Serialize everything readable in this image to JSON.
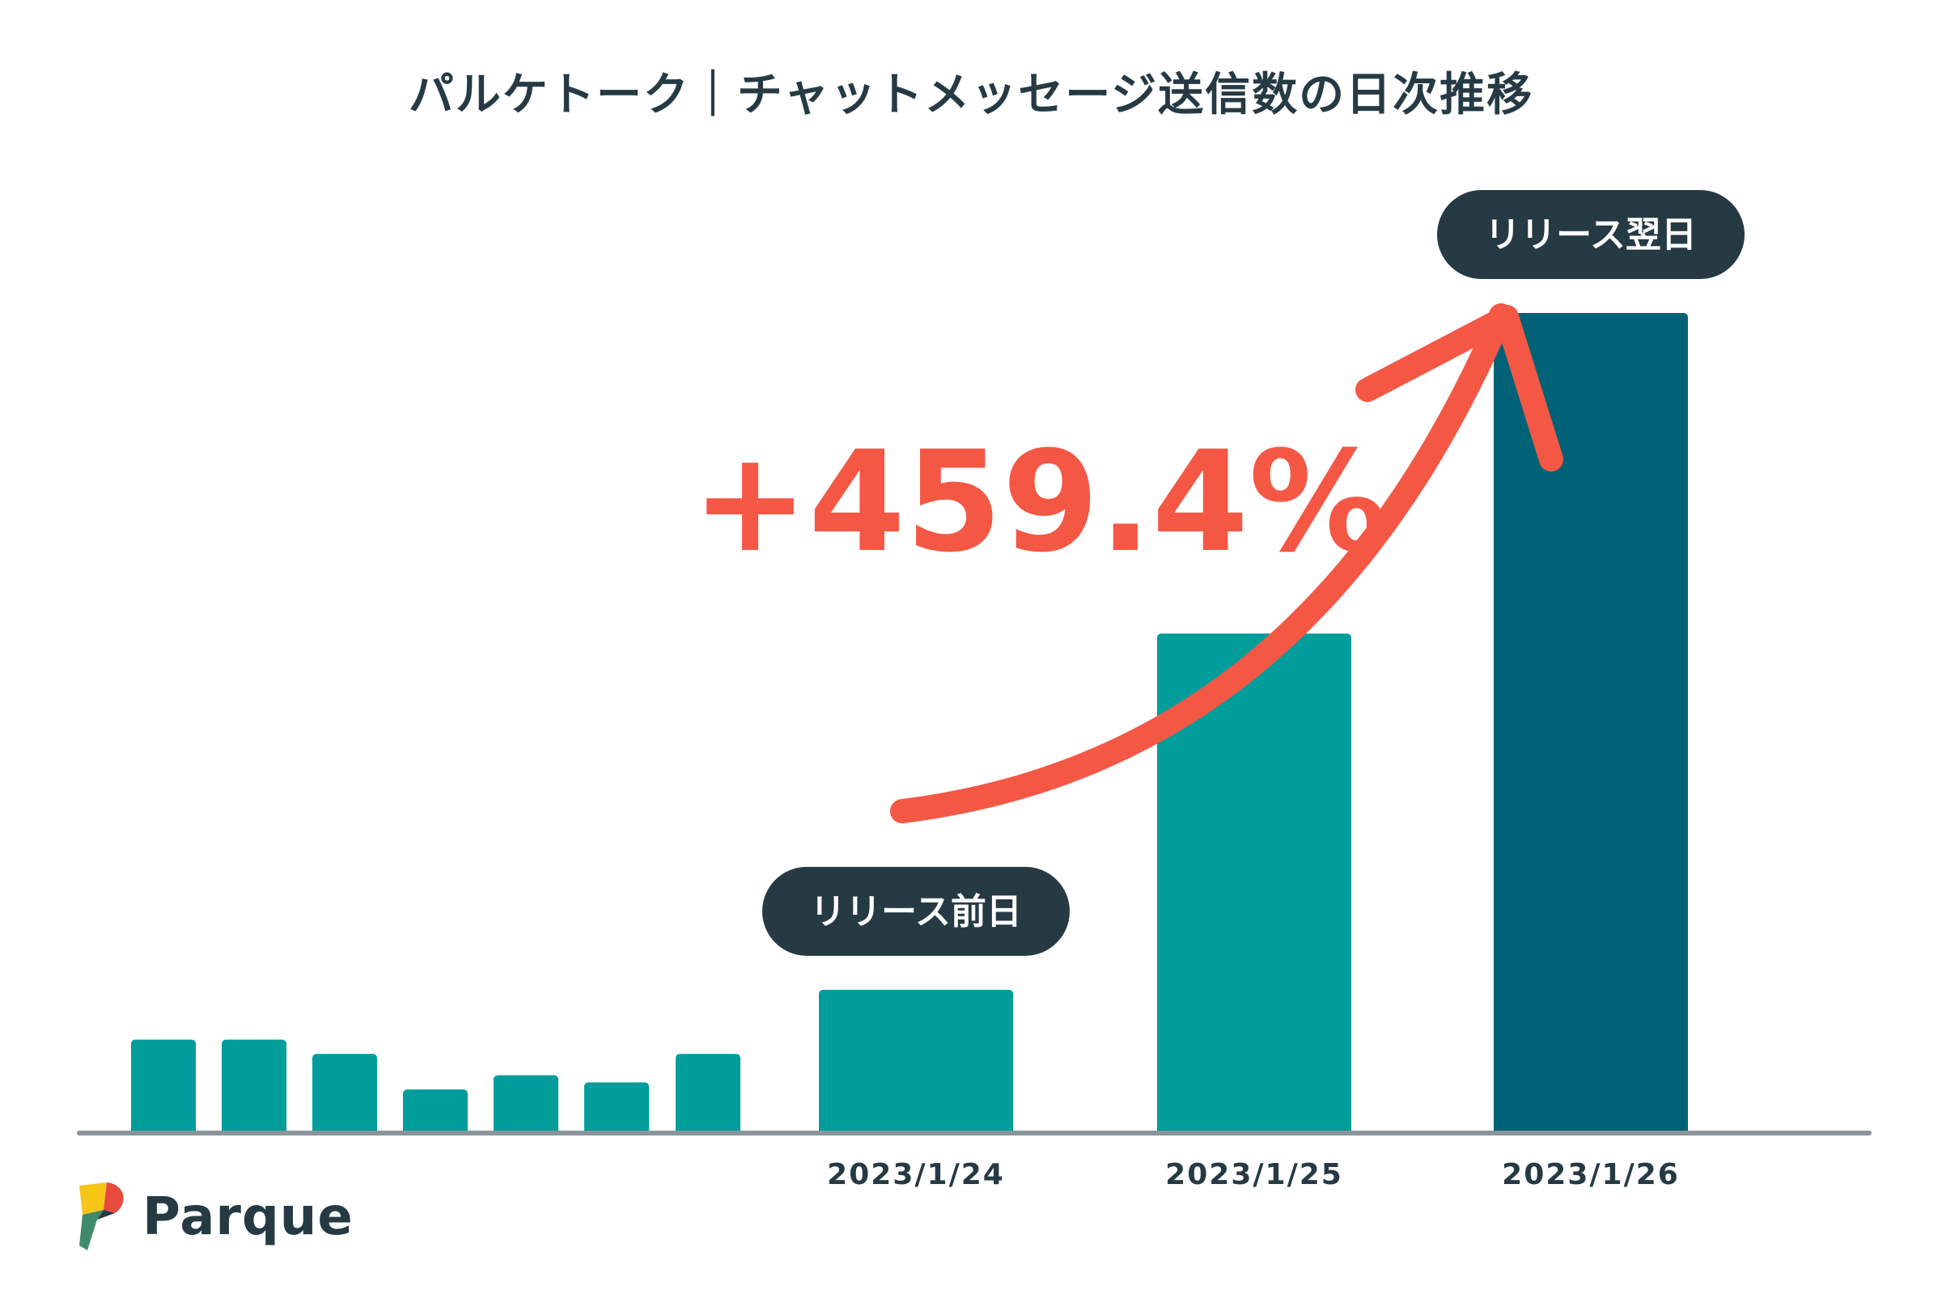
{
  "title": "パルケトーク｜チャットメッセージ送信数の日次推移",
  "brand": {
    "name": "Parque"
  },
  "colors": {
    "bar": "#019d9b",
    "highlight_bar": "#006276",
    "axis": "#8a949b",
    "arrow": "#f55745",
    "pill": "#263a44",
    "text": "#263a44"
  },
  "annotation": {
    "growth": "+459.4%"
  },
  "chart_data": {
    "type": "bar",
    "categories": [
      "",
      "",
      "",
      "",
      "",
      "",
      "",
      "2023/1/24",
      "2023/1/25",
      "2023/1/26"
    ],
    "values": [
      13,
      13,
      11,
      6,
      8,
      7,
      11,
      20,
      70,
      115
    ],
    "callouts": [
      {
        "index": 7,
        "label": "リリース前日"
      },
      {
        "index": 9,
        "label": "リリース翌日"
      }
    ],
    "grid": false,
    "ylim": [
      0,
      115
    ]
  }
}
